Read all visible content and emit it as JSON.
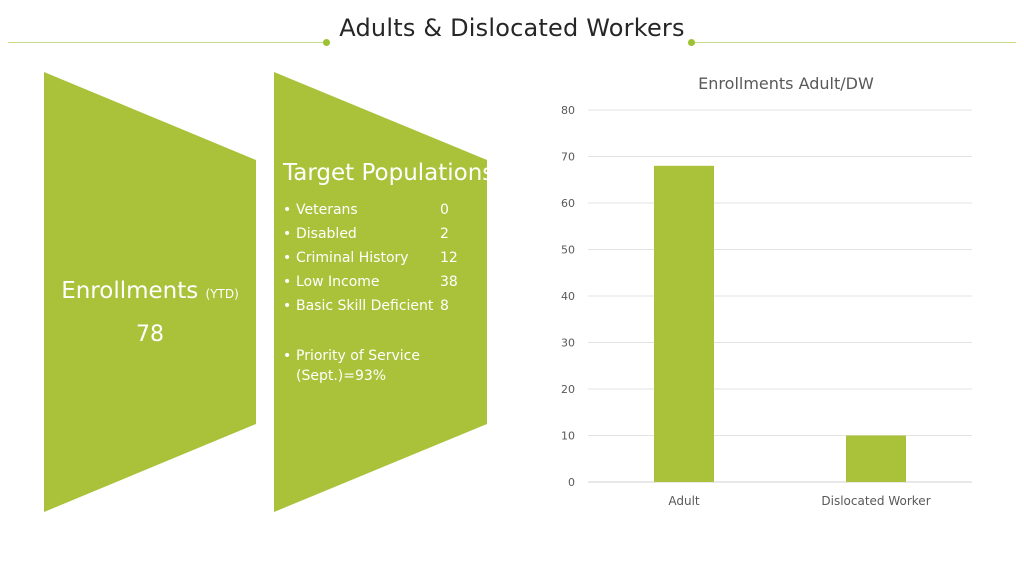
{
  "slide": {
    "title": "Adults & Dislocated Workers"
  },
  "colors": {
    "accent": "#a9c23a",
    "line": "#c5dc8a",
    "text_dark": "#262626",
    "axis_text": "#595959"
  },
  "enrollments": {
    "label": "Enrollments",
    "suffix": "(YTD)",
    "value": "78"
  },
  "target_populations": {
    "title": "Target Populations",
    "bullet": "•",
    "items": [
      {
        "label": "Veterans",
        "value": "0"
      },
      {
        "label": "Disabled",
        "value": "2"
      },
      {
        "label": "Criminal History",
        "value": "12"
      },
      {
        "label": "Low Income",
        "value": "38"
      },
      {
        "label": "Basic Skill Deficient",
        "value": "8"
      }
    ],
    "priority": "Priority of Service (Sept.)=93%"
  },
  "chart_data": {
    "type": "bar",
    "title": "Enrollments Adult/DW",
    "categories": [
      "Adult",
      "Dislocated Worker"
    ],
    "values": [
      68,
      10
    ],
    "xlabel": "",
    "ylabel": "",
    "ylim": [
      0,
      80
    ],
    "yticks": [
      0,
      10,
      20,
      30,
      40,
      50,
      60,
      70,
      80
    ],
    "grid": true,
    "legend": "none"
  }
}
